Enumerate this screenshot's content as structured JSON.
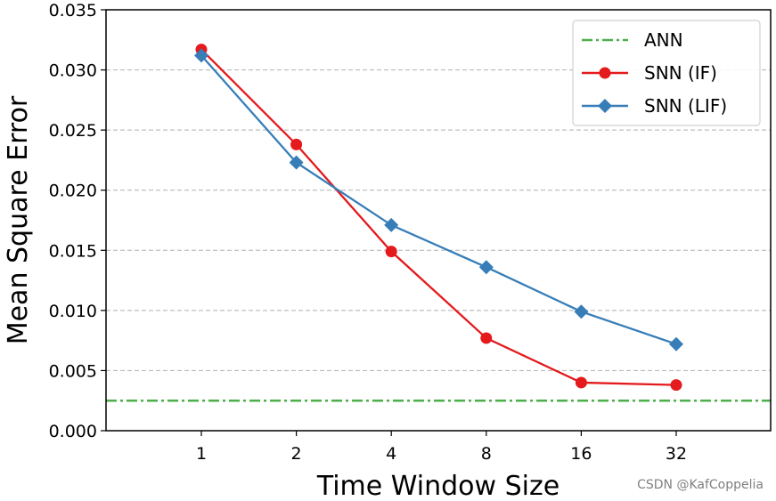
{
  "chart_data": {
    "type": "line",
    "xlabel": "Time Window Size",
    "ylabel": "Mean Square Error",
    "categories": [
      "1",
      "2",
      "4",
      "8",
      "16",
      "32"
    ],
    "ylim": [
      0,
      0.035
    ],
    "yticks": [
      "0.000",
      "0.005",
      "0.010",
      "0.015",
      "0.020",
      "0.025",
      "0.030",
      "0.035"
    ],
    "ytick_values": [
      0,
      0.005,
      0.01,
      0.015,
      0.02,
      0.025,
      0.03,
      0.035
    ],
    "grid": "horizontal dashed",
    "legend_position": "top-right",
    "series": [
      {
        "name": "ANN",
        "style": "dashdot",
        "marker": "none",
        "color": "#4daf4a",
        "constant": 0.0025
      },
      {
        "name": "SNN (IF)",
        "style": "solid",
        "marker": "circle",
        "color": "#e41a1c",
        "values": [
          0.0317,
          0.0238,
          0.0149,
          0.0077,
          0.004,
          0.0038
        ]
      },
      {
        "name": "SNN (LIF)",
        "style": "solid",
        "marker": "diamond",
        "color": "#377eb8",
        "values": [
          0.0312,
          0.0223,
          0.0171,
          0.0136,
          0.0099,
          0.0072
        ]
      }
    ]
  },
  "watermark": "CSDN @KafCoppelia"
}
